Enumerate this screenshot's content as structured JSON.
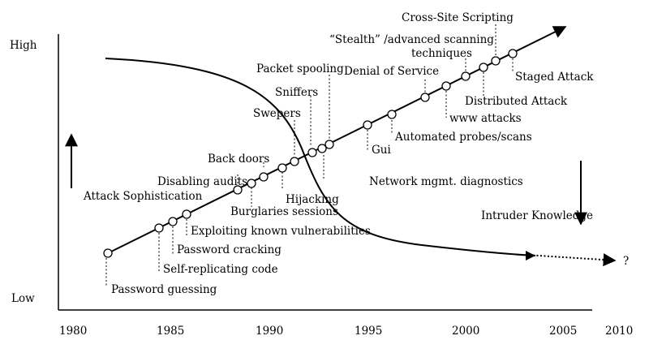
{
  "y_axis": {
    "high_label": "High",
    "low_label": "Low"
  },
  "x_axis": {
    "ticks": [
      "1980",
      "1985",
      "1990",
      "1995",
      "2000",
      "2005",
      "2010"
    ]
  },
  "series": {
    "attack_sophistication": {
      "label": "Attack Sophistication"
    },
    "intruder_knowledge": {
      "label": "Intruder Knowledge",
      "future_marker": "?"
    }
  },
  "milestones": [
    "Password guessing",
    "Self-replicating code",
    "Password cracking",
    "Exploiting known vulnerabilities",
    "Disabling audits",
    "Back doors",
    "Burglaries sessions",
    "Hijacking",
    "Swepers",
    "Sniffers",
    "Packet spooling",
    "Gui",
    "Network mgmt. diagnostics",
    "Automated probes/scans",
    "www attacks",
    "Denial of Service",
    "Distributed Attack",
    "“Stealth” /advanced scanning",
    "techniques",
    "Cross-Site Scripting",
    "Staged Attack"
  ]
}
